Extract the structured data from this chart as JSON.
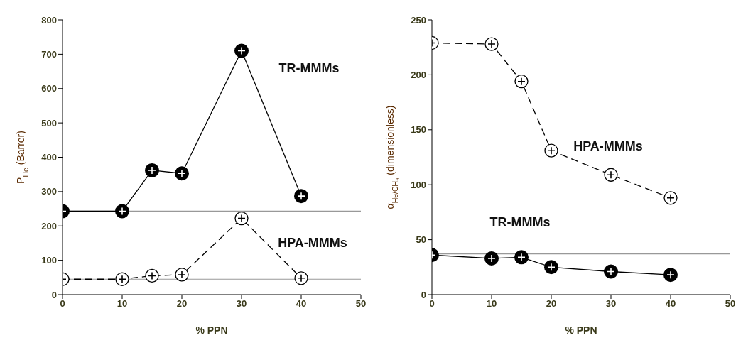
{
  "chart_data": [
    {
      "type": "line",
      "xlabel": "% PPN",
      "ylabel": "P$_{He}$ (Barrer)",
      "xlim": [
        0,
        50
      ],
      "xticks": [
        0,
        10,
        20,
        30,
        40,
        50
      ],
      "ylim": [
        0,
        800
      ],
      "yticks": [
        0,
        100,
        200,
        300,
        400,
        500,
        600,
        700,
        800
      ],
      "grid": false,
      "legend": false,
      "marker": "circle",
      "series": [
        {
          "name": "TR-MMMs",
          "color": "#000000",
          "line_style": "solid",
          "x": [
            0,
            10,
            15,
            20,
            30,
            40
          ],
          "values": [
            243,
            243,
            362,
            353,
            710,
            287
          ]
        },
        {
          "name": "HPA-MMMs",
          "color": "#000000",
          "line_style": "dashed",
          "x": [
            0,
            10,
            15,
            20,
            30,
            40
          ],
          "values": [
            45,
            45,
            55,
            58,
            222,
            48
          ]
        }
      ],
      "ref_lines": [
        {
          "axis": "y",
          "value": 243,
          "color": "#999999"
        },
        {
          "axis": "y",
          "value": 45,
          "color": "#999999"
        }
      ]
    },
    {
      "type": "line",
      "xlabel": "% PPN",
      "ylabel": "α$_{He/CH₄}$ (dimensionless)",
      "xlim": [
        0,
        50
      ],
      "xticks": [
        0,
        10,
        20,
        30,
        40,
        50
      ],
      "ylim": [
        0,
        250
      ],
      "yticks": [
        0,
        50,
        100,
        150,
        200,
        250
      ],
      "grid": false,
      "legend": false,
      "marker": "circle",
      "series": [
        {
          "name": "HPA-MMMs",
          "color": "#000000",
          "line_style": "dashed",
          "x": [
            0,
            10,
            15,
            20,
            30,
            40
          ],
          "values": [
            229,
            228,
            194,
            131,
            109,
            88
          ]
        },
        {
          "name": "TR-MMMs",
          "color": "#000000",
          "line_style": "solid",
          "x": [
            0,
            10,
            15,
            20,
            30,
            40
          ],
          "values": [
            36,
            33,
            34,
            25,
            21,
            18
          ]
        }
      ],
      "ref_lines": [
        {
          "axis": "y",
          "value": 229,
          "color": "#999999"
        },
        {
          "axis": "y",
          "value": 37,
          "color": "#999999"
        }
      ]
    }
  ]
}
